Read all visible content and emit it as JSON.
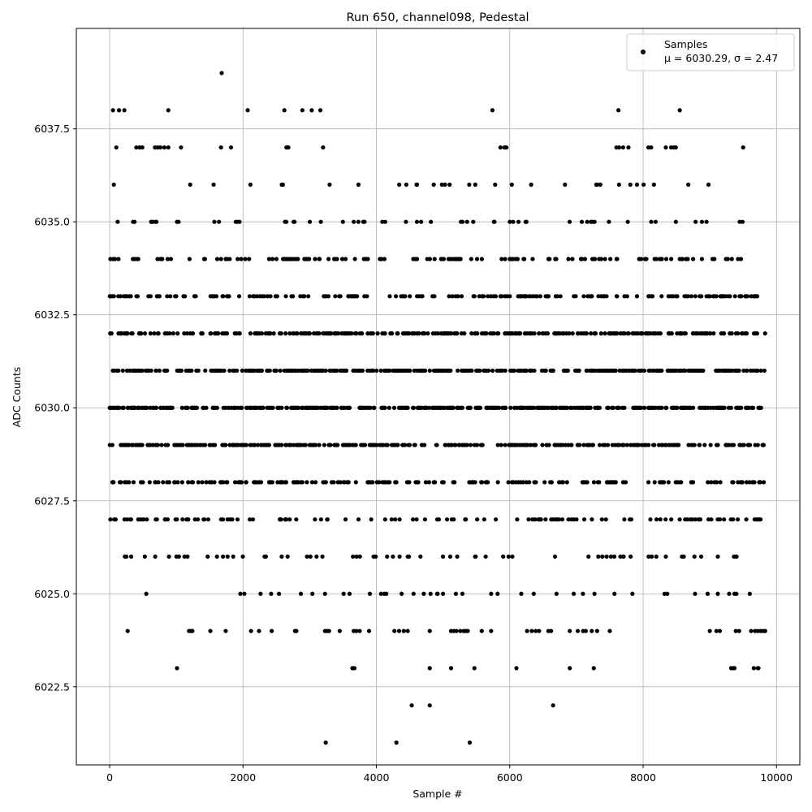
{
  "chart_data": {
    "type": "scatter",
    "title": "Run 650, channel098, Pedestal",
    "xlabel": "Sample #",
    "ylabel": "ADC Counts",
    "xlim": [
      -500,
      10350
    ],
    "ylim": [
      6020.4,
      6040.2
    ],
    "xticks": [
      0,
      2000,
      4000,
      6000,
      8000,
      10000
    ],
    "xtick_labels": [
      "0",
      "2000",
      "4000",
      "6000",
      "8000",
      "10000"
    ],
    "yticks": [
      6022.5,
      6025.0,
      6027.5,
      6030.0,
      6032.5,
      6035.0,
      6037.5
    ],
    "ytick_labels": [
      "6022.5",
      "6025.0",
      "6027.5",
      "6030.0",
      "6032.5",
      "6035.0",
      "6037.5"
    ],
    "grid": true,
    "legend": {
      "placement": "top-right",
      "entry_name": "Samples",
      "stats_line": "μ = 6030.29, σ = 2.47"
    },
    "series": [
      {
        "name": "Samples",
        "color": "#000000",
        "sample_range": [
          0,
          9830
        ],
        "levels": [
          {
            "y": 6021,
            "xs": [
              3240,
              4300,
              5400
            ]
          },
          {
            "y": 6022,
            "xs": [
              4530,
              4800,
              6650
            ]
          },
          {
            "y": 6023,
            "xs": [
              1010,
              3640,
              3670,
              4800,
              5120,
              5470,
              6100,
              6900,
              7260,
              9320,
              9350,
              9370,
              9660,
              9720,
              9730
            ]
          },
          {
            "y": 6024,
            "xs": [
              270,
              1190,
              1220,
              1240,
              1510,
              1740,
              2120,
              2240,
              2430,
              2780,
              2800,
              3230,
              3260,
              3290,
              3450,
              3660,
              3700,
              3750,
              3890,
              4270,
              4340,
              4410,
              4470,
              4800,
              5120,
              5160,
              5200,
              5260,
              5310,
              5340,
              5370,
              5580,
              5720,
              6260,
              6330,
              6390,
              6440,
              6580,
              6620,
              6900,
              7020,
              7100,
              7140,
              7230,
              7310,
              7500,
              9000,
              9100,
              9150,
              9390,
              9440,
              9620,
              9680,
              9720,
              9760,
              9800,
              9830
            ]
          },
          {
            "density": 0.03,
            "y": 6025,
            "x_from": 270,
            "x_to": 9830
          },
          {
            "density": 0.05,
            "y": 6026,
            "x_from": 230,
            "x_to": 9830
          },
          {
            "density": 0.11,
            "y": 6027,
            "x_from": 0,
            "x_to": 9830
          },
          {
            "density": 0.18,
            "y": 6028,
            "x_from": 0,
            "x_to": 9830
          },
          {
            "density": 0.25,
            "y": 6029,
            "x_from": 0,
            "x_to": 9830
          },
          {
            "density": 0.3,
            "y": 6030,
            "x_from": 0,
            "x_to": 9830
          },
          {
            "density": 0.29,
            "y": 6031,
            "x_from": 0,
            "x_to": 9830
          },
          {
            "density": 0.25,
            "y": 6032,
            "x_from": 0,
            "x_to": 9830
          },
          {
            "density": 0.18,
            "y": 6033,
            "x_from": 0,
            "x_to": 9750
          },
          {
            "density": 0.11,
            "y": 6034,
            "x_from": 0,
            "x_to": 9560
          },
          {
            "density": 0.06,
            "y": 6035,
            "x_from": 0,
            "x_to": 9490
          },
          {
            "density": 0.03,
            "y": 6036,
            "x_from": 0,
            "x_to": 9110
          },
          {
            "y": 6037,
            "xs": [
              100,
              400,
              450,
              490,
              680,
              720,
              760,
              820,
              880,
              1070,
              1670,
              1820,
              2650,
              2680,
              3200,
              5860,
              5920,
              5950,
              7600,
              7640,
              7700,
              7780,
              8080,
              8120,
              8340,
              8420,
              8460,
              8490,
              9500
            ]
          },
          {
            "y": 6038,
            "xs": [
              50,
              140,
              220,
              880,
              2070,
              2620,
              2890,
              3030,
              3160,
              5740,
              7630,
              8550
            ]
          },
          {
            "y": 6039,
            "xs": [
              1680
            ]
          }
        ]
      }
    ]
  }
}
